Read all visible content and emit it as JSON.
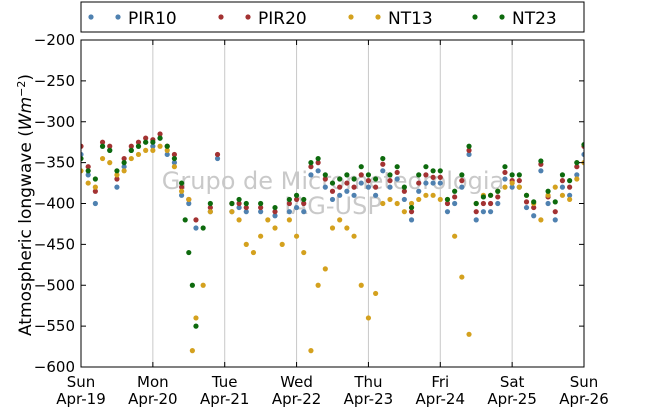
{
  "chart_data": {
    "type": "scatter",
    "ylabel": "Atmospheric longwave (W m⁻²)",
    "ylabel_text": "Atmospheric longwave (",
    "ylabel_unit_base": "Wm",
    "ylabel_unit_exp": "−2",
    "ylabel_close": ")",
    "ylim": [
      -600,
      -200
    ],
    "yticks": [
      -600,
      -550,
      -500,
      -450,
      -400,
      -350,
      -300,
      -250,
      -200
    ],
    "ytick_labels": [
      "−600",
      "−550",
      "−500",
      "−450",
      "−400",
      "−350",
      "−300",
      "−250",
      "−200"
    ],
    "xlim": [
      0,
      7
    ],
    "xticks": [
      0,
      1,
      2,
      3,
      4,
      5,
      6,
      7
    ],
    "xtick_labels": [
      {
        "day": "Sun",
        "date": "Apr-19"
      },
      {
        "day": "Mon",
        "date": "Apr-20"
      },
      {
        "day": "Tue",
        "date": "Apr-21"
      },
      {
        "day": "Wed",
        "date": "Apr-22"
      },
      {
        "day": "Thu",
        "date": "Apr-23"
      },
      {
        "day": "Fri",
        "date": "Apr-24"
      },
      {
        "day": "Sat",
        "date": "Apr-25"
      },
      {
        "day": "Sun",
        "date": "Apr-26"
      }
    ],
    "grid": "vertical",
    "legend": "top",
    "watermark": [
      "Grupo de Micrometeorologia",
      "IAG-USP"
    ],
    "series": [
      {
        "name": "PIR10",
        "color": "#4f81b0",
        "x": [
          0.0,
          0.1,
          0.2,
          0.3,
          0.4,
          0.5,
          0.6,
          0.7,
          0.8,
          0.9,
          1.0,
          1.1,
          1.2,
          1.3,
          1.4,
          1.5,
          1.6,
          1.8,
          1.9,
          2.1,
          2.2,
          2.3,
          2.5,
          2.7,
          2.9,
          3.0,
          3.1,
          3.2,
          3.3,
          3.4,
          3.5,
          3.6,
          3.7,
          3.8,
          3.9,
          4.0,
          4.1,
          4.2,
          4.3,
          4.4,
          4.5,
          4.6,
          4.7,
          4.8,
          4.9,
          5.0,
          5.1,
          5.2,
          5.3,
          5.4,
          5.5,
          5.6,
          5.7,
          5.8,
          5.9,
          6.0,
          6.1,
          6.2,
          6.3,
          6.4,
          6.5,
          6.6,
          6.7,
          6.8,
          6.9,
          7.0
        ],
        "y": [
          -340,
          -365,
          -400,
          -330,
          -335,
          -380,
          -355,
          -335,
          -330,
          -325,
          -330,
          -320,
          -340,
          -350,
          -390,
          -400,
          -430,
          -410,
          -345,
          -410,
          -405,
          -410,
          -410,
          -415,
          -410,
          -405,
          -410,
          -365,
          -360,
          -380,
          -395,
          -390,
          -385,
          -390,
          -375,
          -380,
          -390,
          -360,
          -380,
          -370,
          -395,
          -420,
          -385,
          -375,
          -375,
          -375,
          -410,
          -400,
          -380,
          -340,
          -420,
          -410,
          -410,
          -400,
          -370,
          -380,
          -380,
          -405,
          -415,
          -360,
          -400,
          -420,
          -380,
          -390,
          -365,
          -340
        ]
      },
      {
        "name": "PIR20",
        "color": "#a33232",
        "x": [
          0.0,
          0.1,
          0.2,
          0.3,
          0.4,
          0.5,
          0.6,
          0.7,
          0.8,
          0.9,
          1.0,
          1.1,
          1.2,
          1.3,
          1.4,
          1.5,
          1.6,
          1.8,
          1.9,
          2.1,
          2.2,
          2.3,
          2.5,
          2.7,
          2.9,
          3.0,
          3.1,
          3.2,
          3.3,
          3.4,
          3.5,
          3.6,
          3.7,
          3.8,
          3.9,
          4.0,
          4.1,
          4.2,
          4.3,
          4.4,
          4.5,
          4.6,
          4.7,
          4.8,
          4.9,
          5.0,
          5.1,
          5.2,
          5.3,
          5.4,
          5.5,
          5.6,
          5.7,
          5.8,
          5.9,
          6.0,
          6.1,
          6.2,
          6.3,
          6.4,
          6.5,
          6.6,
          6.7,
          6.8,
          6.9,
          7.0
        ],
        "y": [
          -330,
          -355,
          -385,
          -325,
          -330,
          -370,
          -345,
          -330,
          -325,
          -320,
          -322,
          -315,
          -330,
          -340,
          -380,
          -395,
          -420,
          -405,
          -340,
          -400,
          -400,
          -405,
          -405,
          -410,
          -400,
          -395,
          -400,
          -355,
          -350,
          -370,
          -385,
          -380,
          -375,
          -380,
          -365,
          -372,
          -380,
          -352,
          -372,
          -362,
          -385,
          -410,
          -375,
          -365,
          -368,
          -368,
          -400,
          -392,
          -372,
          -335,
          -410,
          -400,
          -400,
          -392,
          -362,
          -372,
          -372,
          -398,
          -405,
          -352,
          -392,
          -410,
          -372,
          -380,
          -355,
          -330
        ]
      },
      {
        "name": "NT13",
        "color": "#d4a11e",
        "x": [
          0.0,
          0.1,
          0.2,
          0.3,
          0.4,
          0.5,
          0.6,
          0.7,
          0.8,
          0.9,
          1.0,
          1.1,
          1.2,
          1.3,
          1.4,
          1.5,
          1.55,
          1.6,
          1.7,
          1.8,
          2.1,
          2.2,
          2.3,
          2.4,
          2.5,
          2.6,
          2.7,
          2.8,
          2.9,
          3.0,
          3.1,
          3.2,
          3.3,
          3.4,
          3.5,
          3.6,
          3.7,
          3.8,
          3.9,
          4.0,
          4.1,
          4.2,
          4.3,
          4.4,
          4.5,
          4.6,
          4.7,
          4.8,
          4.9,
          5.0,
          5.1,
          5.2,
          5.3,
          5.4,
          5.5,
          5.6,
          5.7,
          5.8,
          5.9,
          6.0,
          6.1,
          6.2,
          6.3,
          6.4,
          6.5,
          6.6,
          6.7,
          6.8,
          6.9,
          7.0
        ],
        "y": [
          -360,
          -375,
          -380,
          -345,
          -350,
          -365,
          -360,
          -345,
          -340,
          -335,
          -335,
          -330,
          -335,
          -355,
          -385,
          -395,
          -580,
          -540,
          -500,
          -410,
          -410,
          -420,
          -450,
          -460,
          -440,
          -420,
          -430,
          -450,
          -420,
          -440,
          -460,
          -580,
          -500,
          -480,
          -430,
          -420,
          -430,
          -440,
          -500,
          -540,
          -510,
          -400,
          -395,
          -400,
          -410,
          -400,
          -395,
          -390,
          -390,
          -395,
          -395,
          -440,
          -490,
          -560,
          -400,
          -390,
          -390,
          -385,
          -380,
          -375,
          -380,
          -390,
          -400,
          -420,
          -390,
          -380,
          -390,
          -395,
          -370,
          -350
        ]
      },
      {
        "name": "NT23",
        "color": "#0d6a0d",
        "x": [
          0.0,
          0.1,
          0.2,
          0.3,
          0.4,
          0.5,
          0.6,
          0.7,
          0.8,
          0.9,
          1.0,
          1.1,
          1.2,
          1.3,
          1.4,
          1.45,
          1.5,
          1.55,
          1.6,
          1.7,
          1.8,
          2.1,
          2.2,
          2.3,
          2.5,
          2.7,
          2.9,
          3.0,
          3.1,
          3.2,
          3.3,
          3.4,
          3.5,
          3.6,
          3.7,
          3.8,
          3.9,
          4.0,
          4.1,
          4.2,
          4.3,
          4.4,
          4.5,
          4.6,
          4.7,
          4.8,
          4.9,
          5.0,
          5.1,
          5.2,
          5.3,
          5.4,
          5.5,
          5.6,
          5.7,
          5.8,
          5.9,
          6.0,
          6.1,
          6.2,
          6.3,
          6.4,
          6.5,
          6.6,
          6.7,
          6.8,
          6.9,
          7.0
        ],
        "y": [
          -345,
          -360,
          -370,
          -330,
          -335,
          -360,
          -350,
          -335,
          -330,
          -325,
          -325,
          -320,
          -330,
          -345,
          -375,
          -420,
          -460,
          -500,
          -550,
          -430,
          -400,
          -400,
          -395,
          -400,
          -400,
          -405,
          -395,
          -390,
          -395,
          -350,
          -345,
          -365,
          -375,
          -370,
          -365,
          -370,
          -355,
          -365,
          -370,
          -345,
          -365,
          -355,
          -380,
          -405,
          -365,
          -355,
          -360,
          -360,
          -395,
          -385,
          -365,
          -330,
          -400,
          -392,
          -390,
          -385,
          -355,
          -365,
          -365,
          -390,
          -398,
          -348,
          -385,
          -398,
          -365,
          -372,
          -350,
          -328
        ]
      }
    ]
  }
}
